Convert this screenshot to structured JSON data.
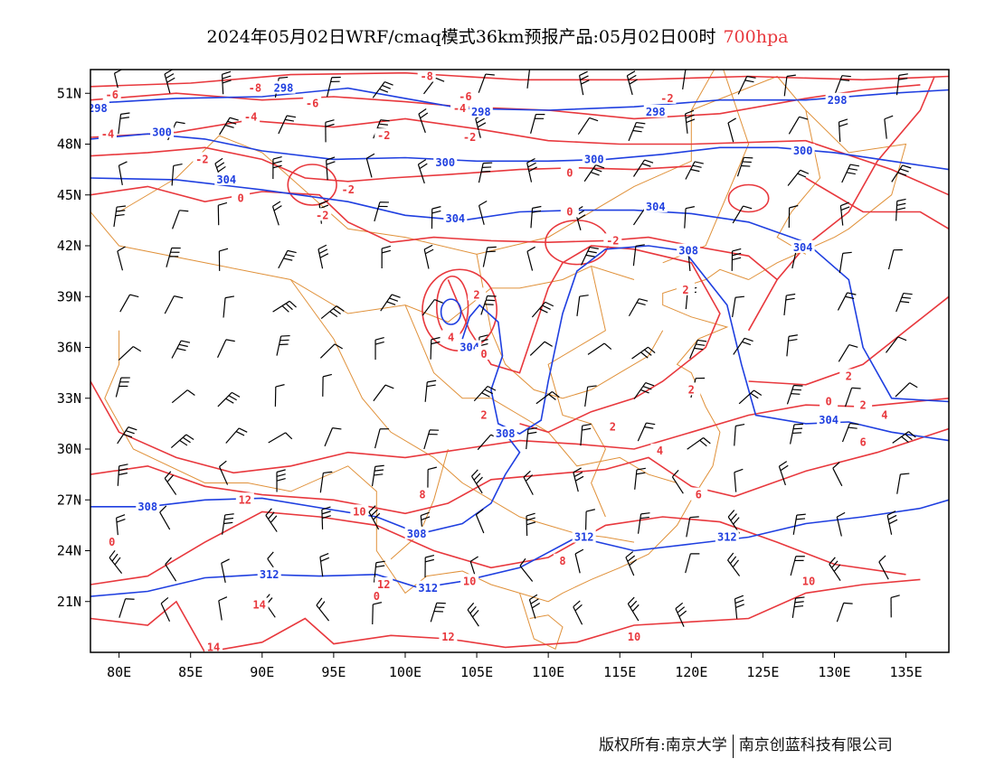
{
  "title": {
    "text": "2024年05月02日WRF/cmaq模式36km预报产品:05月02日00时",
    "level": "700hpa"
  },
  "axes": {
    "lon_labels": [
      "80E",
      "85E",
      "90E",
      "95E",
      "100E",
      "105E",
      "110E",
      "115E",
      "120E",
      "125E",
      "130E",
      "135E"
    ],
    "lat_labels": [
      "51N",
      "48N",
      "45N",
      "42N",
      "39N",
      "36N",
      "33N",
      "30N",
      "27N",
      "24N",
      "21N"
    ]
  },
  "contours": {
    "height_color": "#1f3fe0",
    "temp_color": "#e8383d",
    "border_color": "#e0913a",
    "barb_color": "#000000",
    "height_labels": [
      {
        "text": "298",
        "lon": 78.5,
        "lat": 50.1
      },
      {
        "text": "298",
        "lon": 91.5,
        "lat": 51.3
      },
      {
        "text": "298",
        "lon": 105.3,
        "lat": 49.9
      },
      {
        "text": "298",
        "lon": 117.5,
        "lat": 49.9
      },
      {
        "text": "298",
        "lon": 130.2,
        "lat": 50.6
      },
      {
        "text": "300",
        "lon": 83.0,
        "lat": 48.7
      },
      {
        "text": "300",
        "lon": 102.8,
        "lat": 46.9
      },
      {
        "text": "300",
        "lon": 113.2,
        "lat": 47.1
      },
      {
        "text": "300",
        "lon": 127.8,
        "lat": 47.6
      },
      {
        "text": "304",
        "lon": 87.5,
        "lat": 45.9
      },
      {
        "text": "304",
        "lon": 103.5,
        "lat": 43.6
      },
      {
        "text": "304",
        "lon": 117.5,
        "lat": 44.3
      },
      {
        "text": "304",
        "lon": 127.8,
        "lat": 41.9
      },
      {
        "text": "308",
        "lon": 119.8,
        "lat": 41.7
      },
      {
        "text": "304",
        "lon": 104.5,
        "lat": 36.0
      },
      {
        "text": "308",
        "lon": 107.0,
        "lat": 30.9
      },
      {
        "text": "304",
        "lon": 129.6,
        "lat": 31.7
      },
      {
        "text": "308",
        "lon": 82.0,
        "lat": 26.6
      },
      {
        "text": "308",
        "lon": 100.8,
        "lat": 25.0
      },
      {
        "text": "312",
        "lon": 112.5,
        "lat": 24.8
      },
      {
        "text": "312",
        "lon": 122.5,
        "lat": 24.8
      },
      {
        "text": "312",
        "lon": 90.5,
        "lat": 22.6
      },
      {
        "text": "312",
        "lon": 101.6,
        "lat": 21.8
      }
    ],
    "temp_labels": [
      {
        "text": "-8",
        "lon": 89.5,
        "lat": 51.3
      },
      {
        "text": "-6",
        "lon": 93.5,
        "lat": 50.4
      },
      {
        "text": "-8",
        "lon": 101.5,
        "lat": 52.0
      },
      {
        "text": "-6",
        "lon": 104.2,
        "lat": 50.8
      },
      {
        "text": "-4",
        "lon": 103.8,
        "lat": 50.1
      },
      {
        "text": "-2",
        "lon": 118.3,
        "lat": 50.7
      },
      {
        "text": "-6",
        "lon": 79.5,
        "lat": 50.9
      },
      {
        "text": "-4",
        "lon": 89.2,
        "lat": 49.6
      },
      {
        "text": "-4",
        "lon": 79.2,
        "lat": 48.6
      },
      {
        "text": "-2",
        "lon": 98.5,
        "lat": 48.5
      },
      {
        "text": "-2",
        "lon": 104.5,
        "lat": 48.4
      },
      {
        "text": "-2",
        "lon": 85.8,
        "lat": 47.1
      },
      {
        "text": "-2",
        "lon": 96.0,
        "lat": 45.3
      },
      {
        "text": "-2",
        "lon": 94.2,
        "lat": 43.8
      },
      {
        "text": "0",
        "lon": 88.5,
        "lat": 44.8
      },
      {
        "text": "0",
        "lon": 111.5,
        "lat": 46.3
      },
      {
        "text": "-2",
        "lon": 114.5,
        "lat": 42.3
      },
      {
        "text": "2",
        "lon": 105.0,
        "lat": 39.1
      },
      {
        "text": "4",
        "lon": 103.2,
        "lat": 36.6
      },
      {
        "text": "0",
        "lon": 105.5,
        "lat": 35.6
      },
      {
        "text": "2",
        "lon": 119.6,
        "lat": 39.4
      },
      {
        "text": "2",
        "lon": 120.0,
        "lat": 33.5
      },
      {
        "text": "0",
        "lon": 129.6,
        "lat": 32.8
      },
      {
        "text": "2",
        "lon": 131.0,
        "lat": 34.3
      },
      {
        "text": "2",
        "lon": 132.0,
        "lat": 32.6
      },
      {
        "text": "4",
        "lon": 133.5,
        "lat": 32.0
      },
      {
        "text": "6",
        "lon": 132.0,
        "lat": 30.4
      },
      {
        "text": "2",
        "lon": 105.5,
        "lat": 32.0
      },
      {
        "text": "2",
        "lon": 114.5,
        "lat": 31.3
      },
      {
        "text": "4",
        "lon": 117.8,
        "lat": 29.9
      },
      {
        "text": "6",
        "lon": 120.5,
        "lat": 27.3
      },
      {
        "text": "8",
        "lon": 101.2,
        "lat": 27.3
      },
      {
        "text": "10",
        "lon": 96.8,
        "lat": 26.3
      },
      {
        "text": "12",
        "lon": 88.8,
        "lat": 27.0
      },
      {
        "text": "8",
        "lon": 111.0,
        "lat": 23.4
      },
      {
        "text": "10",
        "lon": 104.5,
        "lat": 22.2
      },
      {
        "text": "12",
        "lon": 98.5,
        "lat": 22.0
      },
      {
        "text": "14",
        "lon": 89.8,
        "lat": 20.8
      },
      {
        "text": "12",
        "lon": 103.0,
        "lat": 18.9
      },
      {
        "text": "14",
        "lon": 86.6,
        "lat": 18.3
      },
      {
        "text": "10",
        "lon": 116.0,
        "lat": 18.9
      },
      {
        "text": "10",
        "lon": 128.2,
        "lat": 22.2
      },
      {
        "text": "0",
        "lon": 79.5,
        "lat": 24.5
      },
      {
        "text": "0",
        "lon": 98.0,
        "lat": 21.3
      },
      {
        "text": "0",
        "lon": 111.5,
        "lat": 44.0
      }
    ]
  },
  "footer": {
    "copyright": "版权所有:南京大学",
    "company": "南京创蓝科技有限公司"
  }
}
